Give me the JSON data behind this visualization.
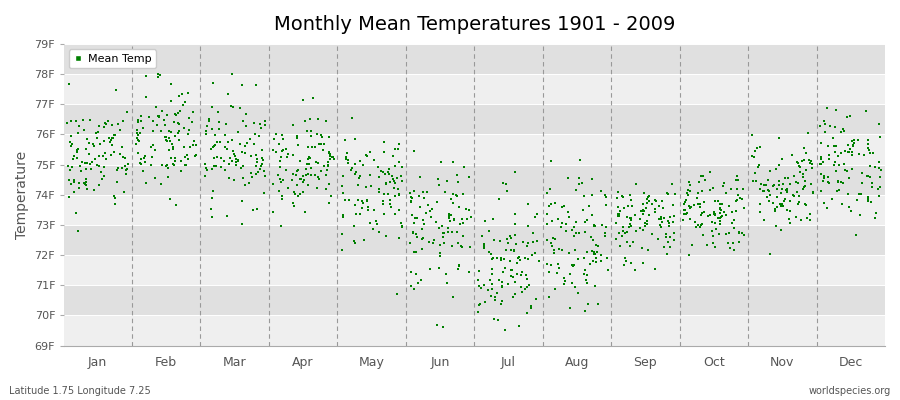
{
  "title": "Monthly Mean Temperatures 1901 - 2009",
  "ylabel": "Temperature",
  "xlabel_bottom_left": "Latitude 1.75 Longitude 7.25",
  "xlabel_bottom_right": "worldspecies.org",
  "legend_label": "Mean Temp",
  "dot_color": "#008000",
  "dot_size": 2.5,
  "background_color": "#ffffff",
  "plot_bg_light": "#efefef",
  "plot_bg_dark": "#e0e0e0",
  "ylim": [
    69,
    79
  ],
  "yticks": [
    69,
    70,
    71,
    72,
    73,
    74,
    75,
    76,
    77,
    78,
    79
  ],
  "ytick_labels": [
    "69F",
    "70F",
    "71F",
    "72F",
    "73F",
    "74F",
    "75F",
    "76F",
    "77F",
    "78F",
    "79F"
  ],
  "months": [
    "Jan",
    "Feb",
    "Mar",
    "Apr",
    "May",
    "Jun",
    "Jul",
    "Aug",
    "Sep",
    "Oct",
    "Nov",
    "Dec"
  ],
  "years": 109,
  "seed": 42,
  "monthly_means": [
    75.2,
    75.8,
    75.5,
    75.1,
    74.2,
    72.8,
    71.8,
    72.3,
    73.1,
    73.5,
    74.3,
    75.0
  ],
  "monthly_stds": [
    0.9,
    1.0,
    0.9,
    0.8,
    1.0,
    1.1,
    1.2,
    1.1,
    0.7,
    0.7,
    0.8,
    0.9
  ]
}
